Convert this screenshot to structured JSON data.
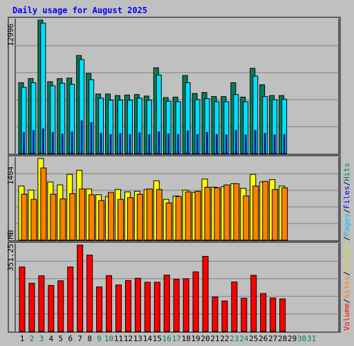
{
  "title": "Daily usage for August 2025",
  "colors": {
    "background": "#c0c0c0",
    "title": "#0000ff",
    "hits_dark": "#00805c",
    "files": "#00e0ff",
    "visits": "#ffff00",
    "sites": "#ff8000",
    "volume": "#ff0000",
    "weekend_label": "#00805c",
    "weekday_label": "#000000"
  },
  "right_legend": {
    "bottom_group": [
      {
        "label": "Volume",
        "color": "#ff0000"
      },
      {
        "label": "/",
        "color": "#000000"
      },
      {
        "label": "Sites",
        "color": "#ff8000"
      },
      {
        "label": "/",
        "color": "#000000"
      },
      {
        "label": "Visits",
        "color": "#e0e000"
      }
    ],
    "top_group": [
      {
        "label": "/",
        "color": "#000000"
      },
      {
        "label": "Pages",
        "color": "#00c0ff"
      },
      {
        "label": "/",
        "color": "#000000"
      },
      {
        "label": "Files",
        "color": "#0000ff"
      },
      {
        "label": "/",
        "color": "#000000"
      },
      {
        "label": "Hits",
        "color": "#00805c"
      }
    ]
  },
  "chart_data": [
    {
      "type": "bar",
      "ylabel": "12996",
      "ymax": 12996,
      "categories": [
        "1",
        "2",
        "3",
        "4",
        "5",
        "6",
        "7",
        "8",
        "9",
        "10",
        "11",
        "12",
        "13",
        "14",
        "15",
        "16",
        "17",
        "18",
        "19",
        "20",
        "21",
        "22",
        "23",
        "24",
        "25",
        "26",
        "27",
        "28",
        "29",
        "30",
        "31"
      ],
      "weekend_days": [
        "2",
        "3",
        "9",
        "10",
        "16",
        "17",
        "23",
        "24",
        "30",
        "31"
      ],
      "series": [
        {
          "name": "Hits",
          "values": [
            6900,
            7300,
            12996,
            7000,
            7300,
            7350,
            9550,
            7800,
            5800,
            5800,
            5650,
            5700,
            5750,
            5600,
            8350,
            5450,
            5500,
            7600,
            5850,
            5950,
            5550,
            5550,
            6900,
            5500,
            8300,
            6700,
            5650,
            5650,
            0,
            0,
            0
          ]
        },
        {
          "name": "Files",
          "values": [
            6450,
            6900,
            12700,
            6600,
            6850,
            6750,
            9150,
            7200,
            5400,
            5200,
            5200,
            5200,
            5400,
            5200,
            7650,
            5100,
            5050,
            6900,
            5250,
            5350,
            5050,
            5050,
            5750,
            5050,
            7550,
            5550,
            5250,
            5300,
            0,
            0,
            0
          ]
        },
        {
          "name": "Pages",
          "values": [
            2100,
            2300,
            2450,
            2100,
            1950,
            2150,
            3250,
            3050,
            2000,
            1900,
            2000,
            1900,
            2050,
            1900,
            2150,
            1950,
            1900,
            2250,
            1900,
            2100,
            1900,
            1850,
            2300,
            1850,
            2300,
            2000,
            1850,
            1900,
            0,
            0,
            0
          ]
        }
      ]
    },
    {
      "type": "bar",
      "ylabel": "1404",
      "ymax": 1404,
      "categories": [
        "1",
        "2",
        "3",
        "4",
        "5",
        "6",
        "7",
        "8",
        "9",
        "10",
        "11",
        "12",
        "13",
        "14",
        "15",
        "16",
        "17",
        "18",
        "19",
        "20",
        "21",
        "22",
        "23",
        "24",
        "25",
        "26",
        "27",
        "28",
        "29",
        "30",
        "31"
      ],
      "series": [
        {
          "name": "Visits",
          "values": [
            930,
            860,
            1404,
            1000,
            950,
            1130,
            1200,
            880,
            780,
            750,
            870,
            830,
            840,
            870,
            1020,
            700,
            760,
            860,
            820,
            1050,
            910,
            920,
            970,
            890,
            1130,
            1000,
            1040,
            930,
            0,
            0,
            0
          ]
        },
        {
          "name": "Sites",
          "values": [
            790,
            700,
            1240,
            790,
            710,
            800,
            880,
            780,
            680,
            820,
            700,
            730,
            790,
            880,
            870,
            640,
            750,
            830,
            840,
            910,
            900,
            950,
            970,
            760,
            930,
            1010,
            870,
            900,
            0,
            0,
            0
          ]
        }
      ]
    },
    {
      "type": "bar",
      "ylabel": "351.25 MB",
      "ymax": 351.25,
      "categories": [
        "1",
        "2",
        "3",
        "4",
        "5",
        "6",
        "7",
        "8",
        "9",
        "10",
        "11",
        "12",
        "13",
        "14",
        "15",
        "16",
        "17",
        "18",
        "19",
        "20",
        "21",
        "22",
        "23",
        "24",
        "25",
        "26",
        "27",
        "28",
        "29",
        "30",
        "31"
      ],
      "series": [
        {
          "name": "Volume",
          "values": [
            262,
            196,
            226,
            187,
            206,
            262,
            351,
            310,
            181,
            227,
            189,
            207,
            216,
            200,
            200,
            229,
            212,
            214,
            242,
            305,
            140,
            124,
            201,
            135,
            228,
            154,
            136,
            132,
            0,
            0,
            0
          ]
        }
      ]
    }
  ]
}
